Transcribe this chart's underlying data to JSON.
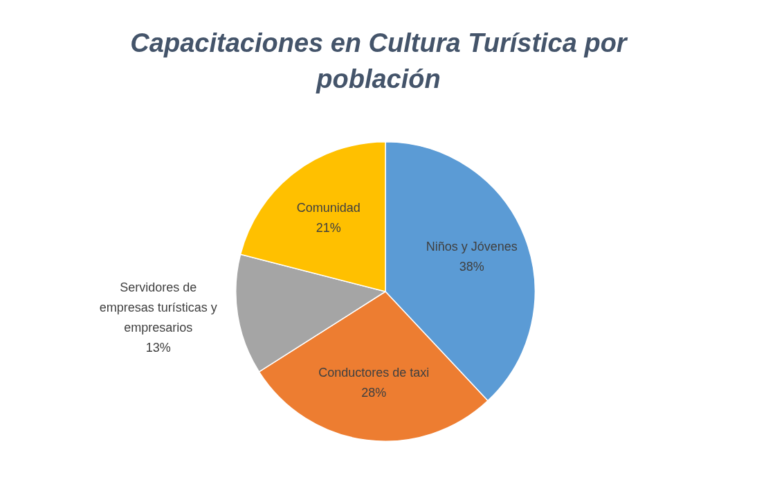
{
  "chart_data": {
    "type": "pie",
    "title": "Capacitaciones en Cultura Turística por población",
    "categories": [
      "Niños y Jóvenes",
      "Conductores de taxi",
      "Servidores de empresas turísticas y empresarios",
      "Comunidad"
    ],
    "values": [
      38,
      28,
      13,
      21
    ],
    "value_labels": [
      "38%",
      "28%",
      "13%",
      "21%"
    ],
    "colors": [
      "#5b9bd5",
      "#ed7d31",
      "#a5a5a5",
      "#ffc000"
    ],
    "legend": false
  }
}
